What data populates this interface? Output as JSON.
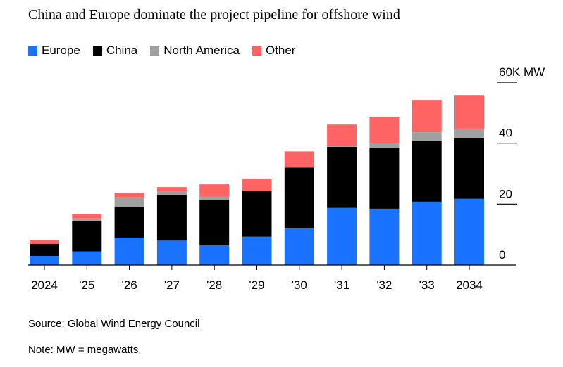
{
  "chart_data": {
    "type": "bar",
    "stacked": true,
    "title": "China and Europe dominate the project pipeline for offshore wind",
    "categories": [
      "2024",
      "'25",
      "'26",
      "'27",
      "'28",
      "'29",
      "'30",
      "'31",
      "'32",
      "'33",
      "2034"
    ],
    "series": [
      {
        "name": "Europe",
        "color": "#1a73ff",
        "values": [
          3,
          4.5,
          9,
          8,
          6.5,
          9.3,
          12,
          18.8,
          18.5,
          20.8,
          21.8
        ]
      },
      {
        "name": "China",
        "color": "#000000",
        "values": [
          4,
          10,
          10,
          15,
          15,
          15,
          20,
          20,
          20,
          20,
          20
        ]
      },
      {
        "name": "North America",
        "color": "#a0a0a0",
        "values": [
          0,
          0.8,
          3.2,
          1.2,
          1,
          0.1,
          0.3,
          0.3,
          1.6,
          2.8,
          3
        ]
      },
      {
        "name": "Other",
        "color": "#ff6464",
        "values": [
          1.2,
          1.5,
          1.5,
          1.4,
          4,
          4,
          5,
          7,
          8.6,
          10.6,
          11
        ]
      }
    ],
    "y_ticks": [
      {
        "value": 60,
        "label": "60K MW"
      },
      {
        "value": 40,
        "label": "40"
      },
      {
        "value": 20,
        "label": "20"
      },
      {
        "value": 0,
        "label": "0"
      }
    ],
    "ylim": [
      0,
      60
    ],
    "legend_position": "top-left"
  },
  "source": "Source: Global Wind Energy Council",
  "note": "Note: MW = megawatts."
}
